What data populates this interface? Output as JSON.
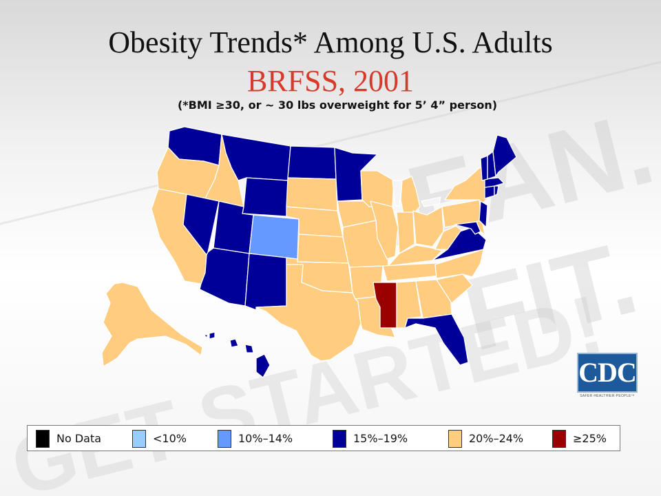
{
  "title": "Obesity Trends* Among U.S. Adults",
  "subtitle": "BRFSS, 2001",
  "footnote": "(*BMI ≥30, or ~ 30 lbs overweight for 5’ 4” person)",
  "watermark_text": [
    "LEAN.",
    "FIT.",
    "GET STARTED!"
  ],
  "logo": {
    "text": "CDC",
    "tagline": "SAFER·HEALTHIER·PEOPLE™"
  },
  "legend": [
    {
      "label": "No Data",
      "color": "#000000"
    },
    {
      "label": "<10%",
      "color": "#99ccff"
    },
    {
      "label": "10%–14%",
      "color": "#6699ff"
    },
    {
      "label": "15%–19%",
      "color": "#000099"
    },
    {
      "label": "20%–24%",
      "color": "#ffcc80"
    },
    {
      "label": "≥25%",
      "color": "#990000"
    }
  ],
  "state_categories": {
    "15%–19%": [
      "WA",
      "MT",
      "ND",
      "MN",
      "WY",
      "NV",
      "UT",
      "AZ",
      "NM",
      "VA",
      "FL",
      "NJ",
      "CT",
      "MA",
      "VT",
      "NH",
      "ME",
      "HI",
      "MD",
      "RI"
    ],
    "10%–14%": [
      "CO"
    ],
    "≥25%": [
      "MS"
    ],
    "20%–24%": [
      "OR",
      "ID",
      "CA",
      "SD",
      "NE",
      "KS",
      "OK",
      "TX",
      "IA",
      "MO",
      "AR",
      "LA",
      "WI",
      "IL",
      "MI",
      "IN",
      "OH",
      "KY",
      "TN",
      "AL",
      "GA",
      "SC",
      "NC",
      "WV",
      "PA",
      "NY",
      "DE",
      "AK"
    ]
  }
}
